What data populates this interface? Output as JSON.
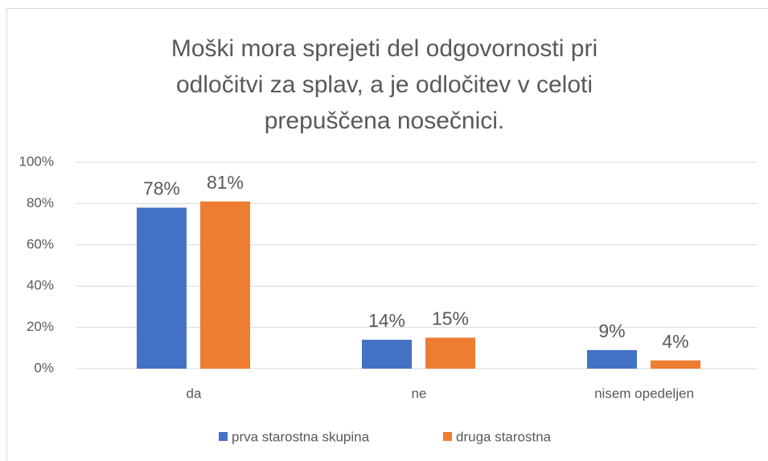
{
  "chart_data": {
    "type": "bar",
    "title": [
      "Moški mora sprejeti del odgovornosti pri",
      "odločitvi za splav, a je odločitev v celoti",
      "prepuščena nosečnici."
    ],
    "categories": [
      "da",
      "ne",
      "nisem opedeljen"
    ],
    "series": [
      {
        "name": "prva starostna skupina",
        "color": "#4472c4",
        "values": [
          78,
          14,
          9
        ],
        "value_labels": [
          "78%",
          "14%",
          "9%"
        ]
      },
      {
        "name": "druga starostna",
        "color": "#ed7d31",
        "values": [
          81,
          15,
          4
        ],
        "value_labels": [
          "81%",
          "15%",
          "4%"
        ]
      }
    ],
    "ylim": [
      0,
      100
    ],
    "yticks": [
      {
        "value": 0,
        "label": "0%"
      },
      {
        "value": 20,
        "label": "20%"
      },
      {
        "value": 40,
        "label": "40%"
      },
      {
        "value": 60,
        "label": "60%"
      },
      {
        "value": 80,
        "label": "80%"
      },
      {
        "value": 100,
        "label": "100%"
      }
    ],
    "grid": true,
    "legend": "bottom"
  }
}
